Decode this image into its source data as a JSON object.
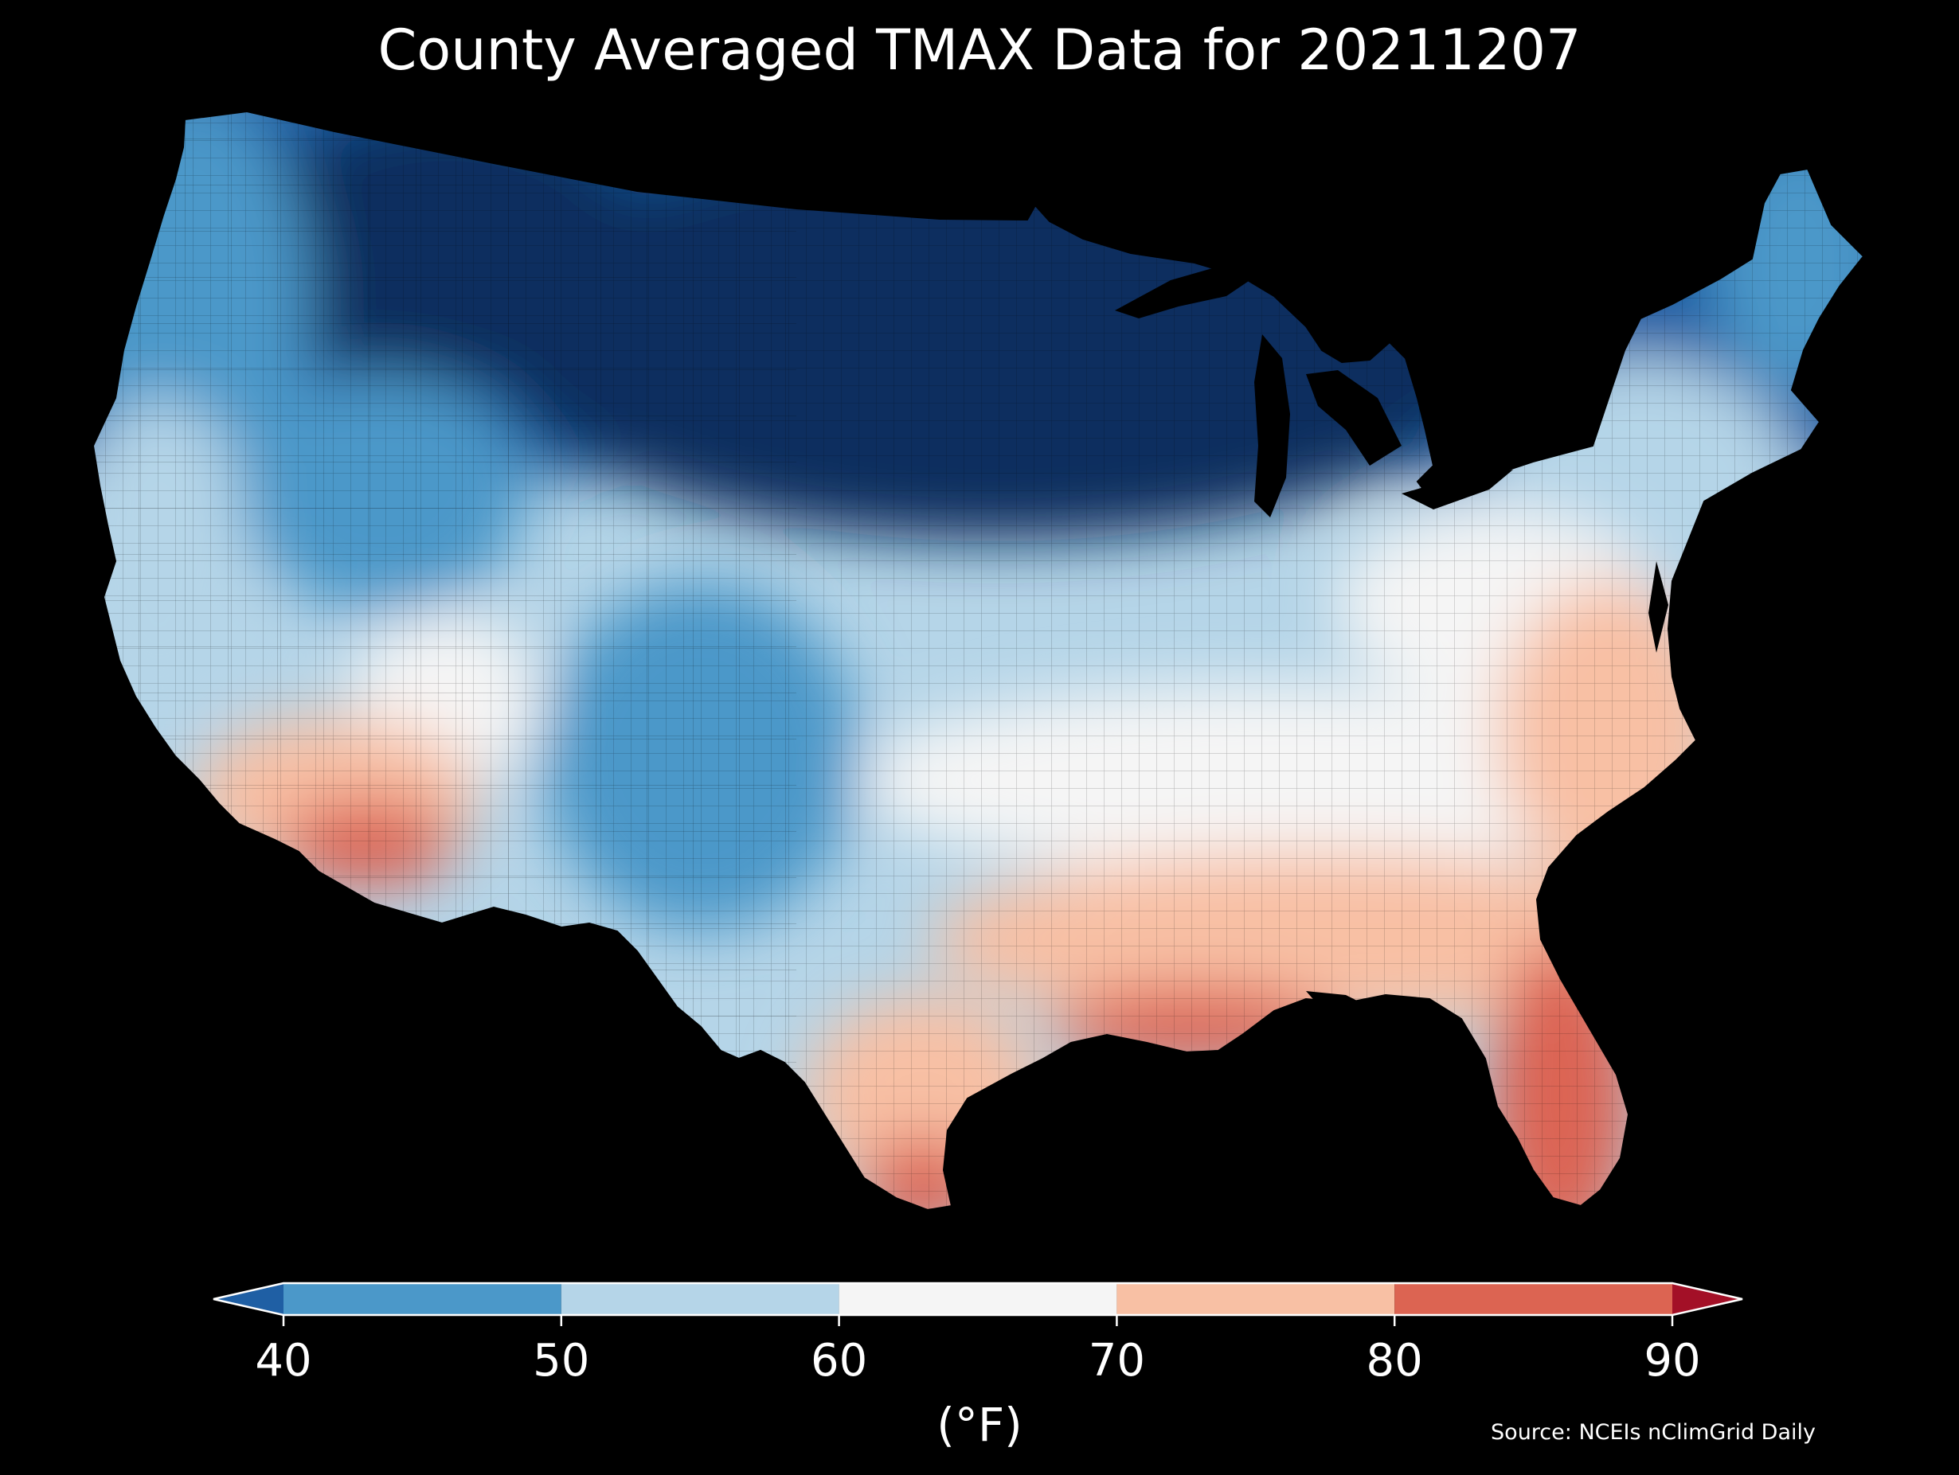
{
  "title": "County Averaged TMAX Data for 20211207",
  "colorbar": {
    "ticks": [
      "40",
      "50",
      "60",
      "70",
      "80",
      "90"
    ],
    "bins": [
      {
        "from": 40,
        "to": 50,
        "color": "#4b98c9"
      },
      {
        "from": 50,
        "to": 60,
        "color": "#b5d5e8"
      },
      {
        "from": 60,
        "to": 70,
        "color": "#f5f5f5"
      },
      {
        "from": 70,
        "to": 80,
        "color": "#f8c0a4"
      },
      {
        "from": 80,
        "to": 90,
        "color": "#dc6452"
      }
    ],
    "under_color": "#1f5fa4",
    "over_color": "#a31027",
    "units": "(°F)"
  },
  "source": "Source: NCEIs nClimGrid Daily",
  "map_colors": {
    "background": "#000000",
    "very_cold": "#0b2f5e",
    "cold": "#1f5fa4",
    "cool": "#4b98c9",
    "mild": "#b5d5e8",
    "neutral": "#f5f5f5",
    "warm": "#f8c0a4",
    "hot": "#dc6452"
  }
}
